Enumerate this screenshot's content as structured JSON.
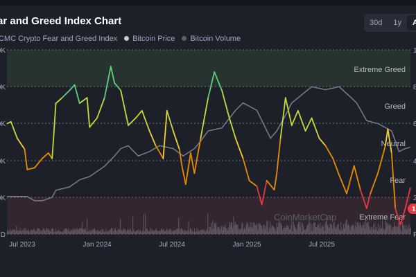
{
  "header": {
    "title": "ar and Greed Index Chart",
    "ranges": [
      "30d",
      "1y",
      "A"
    ]
  },
  "legend": [
    {
      "label": "CMC Crypto Fear and Greed Index",
      "color": "#f3d42f"
    },
    {
      "label": "Bitcoin Price",
      "color": "#c9cbd4"
    },
    {
      "label": "Bitcoin Volume",
      "color": "#5b5f6e"
    }
  ],
  "watermark": "CoinMarketCap",
  "badge": "1",
  "chart_data": {
    "type": "line",
    "x_unit": "months since Jul 2023",
    "x_ticks": [
      {
        "t": 0,
        "label": "Jul 2023"
      },
      {
        "t": 6,
        "label": "Jan 2024"
      },
      {
        "t": 12,
        "label": "Jul 2024"
      },
      {
        "t": 18,
        "label": "Jan 2025"
      },
      {
        "t": 24,
        "label": "Jul 2025"
      }
    ],
    "left_ticks": [
      "0K",
      "0K",
      "0K",
      "0K",
      "0K",
      "D"
    ],
    "right_ticks": [
      "1",
      "8",
      "6",
      "4",
      "2",
      "F"
    ],
    "zones": [
      "Extreme Greed",
      "Greed",
      "Neutral",
      "Fear",
      "Extreme Fear"
    ],
    "index_ylim": [
      0,
      100
    ],
    "price_ylim_k": [
      0,
      125
    ],
    "series": [
      {
        "name": "CMC Crypto Fear and Greed Index",
        "points": [
          [
            -1.2,
            60
          ],
          [
            -0.9,
            61
          ],
          [
            -0.4,
            52
          ],
          [
            0.2,
            46
          ],
          [
            0.4,
            35
          ],
          [
            1.0,
            36
          ],
          [
            1.6,
            41
          ],
          [
            2.1,
            44
          ],
          [
            2.4,
            41
          ],
          [
            2.7,
            71
          ],
          [
            3.2,
            74
          ],
          [
            3.8,
            78
          ],
          [
            4.2,
            81
          ],
          [
            4.6,
            71
          ],
          [
            5.2,
            74
          ],
          [
            5.4,
            58
          ],
          [
            6.0,
            63
          ],
          [
            6.6,
            74
          ],
          [
            7.1,
            91
          ],
          [
            7.4,
            82
          ],
          [
            7.9,
            78
          ],
          [
            8.5,
            59
          ],
          [
            9.1,
            63
          ],
          [
            9.6,
            67
          ],
          [
            10.2,
            56
          ],
          [
            10.7,
            48
          ],
          [
            11.3,
            41
          ],
          [
            11.6,
            67
          ],
          [
            12.1,
            56
          ],
          [
            12.6,
            46
          ],
          [
            12.8,
            37
          ],
          [
            13.1,
            27
          ],
          [
            13.5,
            44
          ],
          [
            13.8,
            33
          ],
          [
            14.3,
            52
          ],
          [
            14.9,
            74
          ],
          [
            15.4,
            88
          ],
          [
            16.0,
            78
          ],
          [
            16.6,
            63
          ],
          [
            17.1,
            52
          ],
          [
            17.7,
            41
          ],
          [
            18.2,
            29
          ],
          [
            18.8,
            26
          ],
          [
            19.2,
            16
          ],
          [
            19.6,
            29
          ],
          [
            20.2,
            24
          ],
          [
            20.4,
            33
          ],
          [
            20.7,
            52
          ],
          [
            21.1,
            74
          ],
          [
            21.6,
            59
          ],
          [
            22.1,
            67
          ],
          [
            22.7,
            56
          ],
          [
            23.2,
            63
          ],
          [
            23.8,
            52
          ],
          [
            24.3,
            48
          ],
          [
            24.9,
            41
          ],
          [
            25.4,
            32
          ],
          [
            26.0,
            22
          ],
          [
            26.6,
            37
          ],
          [
            27.1,
            24
          ],
          [
            27.6,
            14
          ],
          [
            27.9,
            22
          ],
          [
            28.5,
            33
          ],
          [
            29.1,
            48
          ],
          [
            29.3,
            57
          ],
          [
            29.6,
            44
          ],
          [
            29.9,
            14
          ],
          [
            30.3,
            5
          ],
          [
            30.7,
            14
          ],
          [
            31.1,
            25
          ]
        ]
      },
      {
        "name": "Bitcoin Price",
        "points": [
          [
            -1.2,
            25.5
          ],
          [
            0.4,
            25.5
          ],
          [
            1.0,
            22.6
          ],
          [
            1.6,
            22.6
          ],
          [
            2.4,
            25
          ],
          [
            2.7,
            29.7
          ],
          [
            3.8,
            32
          ],
          [
            4.6,
            36.8
          ],
          [
            5.4,
            39
          ],
          [
            6.6,
            46
          ],
          [
            7.4,
            53
          ],
          [
            7.9,
            58
          ],
          [
            8.5,
            60
          ],
          [
            9.3,
            53
          ],
          [
            10.2,
            56
          ],
          [
            11.0,
            60
          ],
          [
            12.1,
            58
          ],
          [
            12.9,
            53
          ],
          [
            13.8,
            58
          ],
          [
            14.3,
            63
          ],
          [
            14.9,
            70
          ],
          [
            16.0,
            72
          ],
          [
            17.1,
            84
          ],
          [
            17.7,
            89
          ],
          [
            18.8,
            84
          ],
          [
            19.9,
            65
          ],
          [
            20.4,
            70
          ],
          [
            21.0,
            79
          ],
          [
            21.6,
            89
          ],
          [
            23.2,
            100
          ],
          [
            24.3,
            98
          ],
          [
            25.4,
            100
          ],
          [
            26.3,
            93
          ],
          [
            26.8,
            89
          ],
          [
            27.6,
            77
          ],
          [
            28.5,
            75
          ],
          [
            29.6,
            70
          ],
          [
            30.2,
            56
          ],
          [
            30.7,
            58
          ],
          [
            31.1,
            59
          ]
        ]
      }
    ]
  }
}
